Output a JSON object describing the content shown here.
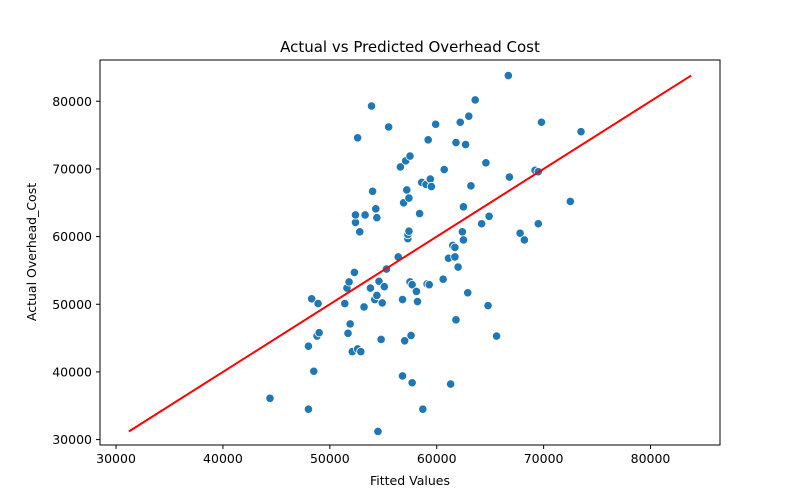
{
  "chart_data": {
    "type": "scatter",
    "title": "Actual vs Predicted Overhead Cost",
    "xlabel": "Fitted Values",
    "ylabel": "Actual Overhead_Cost",
    "xlim": [
      28500,
      86500
    ],
    "ylim": [
      29200,
      86100
    ],
    "xticks": [
      30000,
      40000,
      50000,
      60000,
      70000,
      80000
    ],
    "yticks": [
      30000,
      40000,
      50000,
      60000,
      70000,
      80000
    ],
    "xtick_labels": [
      "30000",
      "40000",
      "50000",
      "60000",
      "70000",
      "80000"
    ],
    "ytick_labels": [
      "30000",
      "40000",
      "50000",
      "60000",
      "70000",
      "80000"
    ],
    "grid": false,
    "colors": {
      "points": "#1f77b4",
      "point_edge": "#ffffff",
      "line": "#ff0000"
    },
    "series": [
      {
        "type": "scatter",
        "points": [
          [
            44400,
            36100
          ],
          [
            48000,
            34500
          ],
          [
            48000,
            43800
          ],
          [
            48300,
            50800
          ],
          [
            48500,
            40100
          ],
          [
            48800,
            45300
          ],
          [
            48900,
            50100
          ],
          [
            49000,
            45800
          ],
          [
            51400,
            50100
          ],
          [
            51600,
            52400
          ],
          [
            51700,
            45700
          ],
          [
            51800,
            53300
          ],
          [
            51900,
            47100
          ],
          [
            52100,
            43000
          ],
          [
            52300,
            54700
          ],
          [
            52400,
            62100
          ],
          [
            52400,
            63200
          ],
          [
            52600,
            43400
          ],
          [
            52600,
            74600
          ],
          [
            52800,
            60700
          ],
          [
            52900,
            43000
          ],
          [
            53200,
            49600
          ],
          [
            53300,
            63200
          ],
          [
            53800,
            52400
          ],
          [
            53900,
            79300
          ],
          [
            54000,
            66700
          ],
          [
            54200,
            50700
          ],
          [
            54300,
            64100
          ],
          [
            54400,
            51300
          ],
          [
            54400,
            62800
          ],
          [
            54500,
            31200
          ],
          [
            54600,
            53400
          ],
          [
            54800,
            44800
          ],
          [
            54900,
            50200
          ],
          [
            55100,
            52600
          ],
          [
            55300,
            55200
          ],
          [
            55500,
            76200
          ],
          [
            56400,
            57000
          ],
          [
            56600,
            70300
          ],
          [
            56800,
            39400
          ],
          [
            56800,
            50700
          ],
          [
            56900,
            65000
          ],
          [
            57000,
            44600
          ],
          [
            57100,
            71200
          ],
          [
            57200,
            66900
          ],
          [
            57300,
            59700
          ],
          [
            57300,
            60300
          ],
          [
            57400,
            60800
          ],
          [
            57400,
            65700
          ],
          [
            57500,
            53300
          ],
          [
            57500,
            71900
          ],
          [
            57600,
            45400
          ],
          [
            57700,
            38400
          ],
          [
            57700,
            52900
          ],
          [
            58100,
            51900
          ],
          [
            58200,
            50400
          ],
          [
            58400,
            63400
          ],
          [
            58600,
            68000
          ],
          [
            58700,
            34500
          ],
          [
            59000,
            67700
          ],
          [
            59100,
            53000
          ],
          [
            59200,
            74300
          ],
          [
            59300,
            52900
          ],
          [
            59400,
            68500
          ],
          [
            59500,
            67400
          ],
          [
            59900,
            76600
          ],
          [
            60600,
            53700
          ],
          [
            60700,
            69900
          ],
          [
            61100,
            56800
          ],
          [
            61300,
            38200
          ],
          [
            61500,
            58700
          ],
          [
            61700,
            58400
          ],
          [
            61700,
            57000
          ],
          [
            61800,
            47700
          ],
          [
            61800,
            73900
          ],
          [
            62000,
            55500
          ],
          [
            62200,
            76900
          ],
          [
            62400,
            60700
          ],
          [
            62500,
            64400
          ],
          [
            62500,
            59500
          ],
          [
            62700,
            73600
          ],
          [
            62900,
            51700
          ],
          [
            63000,
            77800
          ],
          [
            63200,
            67500
          ],
          [
            63600,
            80200
          ],
          [
            64200,
            61900
          ],
          [
            64600,
            70900
          ],
          [
            64800,
            49800
          ],
          [
            64900,
            63000
          ],
          [
            65600,
            45300
          ],
          [
            66700,
            83800
          ],
          [
            66800,
            68800
          ],
          [
            67800,
            60500
          ],
          [
            68200,
            59500
          ],
          [
            69200,
            69800
          ],
          [
            69500,
            61900
          ],
          [
            69500,
            69600
          ],
          [
            69800,
            76900
          ],
          [
            72500,
            65200
          ],
          [
            73500,
            75500
          ]
        ]
      },
      {
        "type": "line",
        "points": [
          [
            31200,
            31200
          ],
          [
            83800,
            83800
          ]
        ]
      }
    ]
  }
}
